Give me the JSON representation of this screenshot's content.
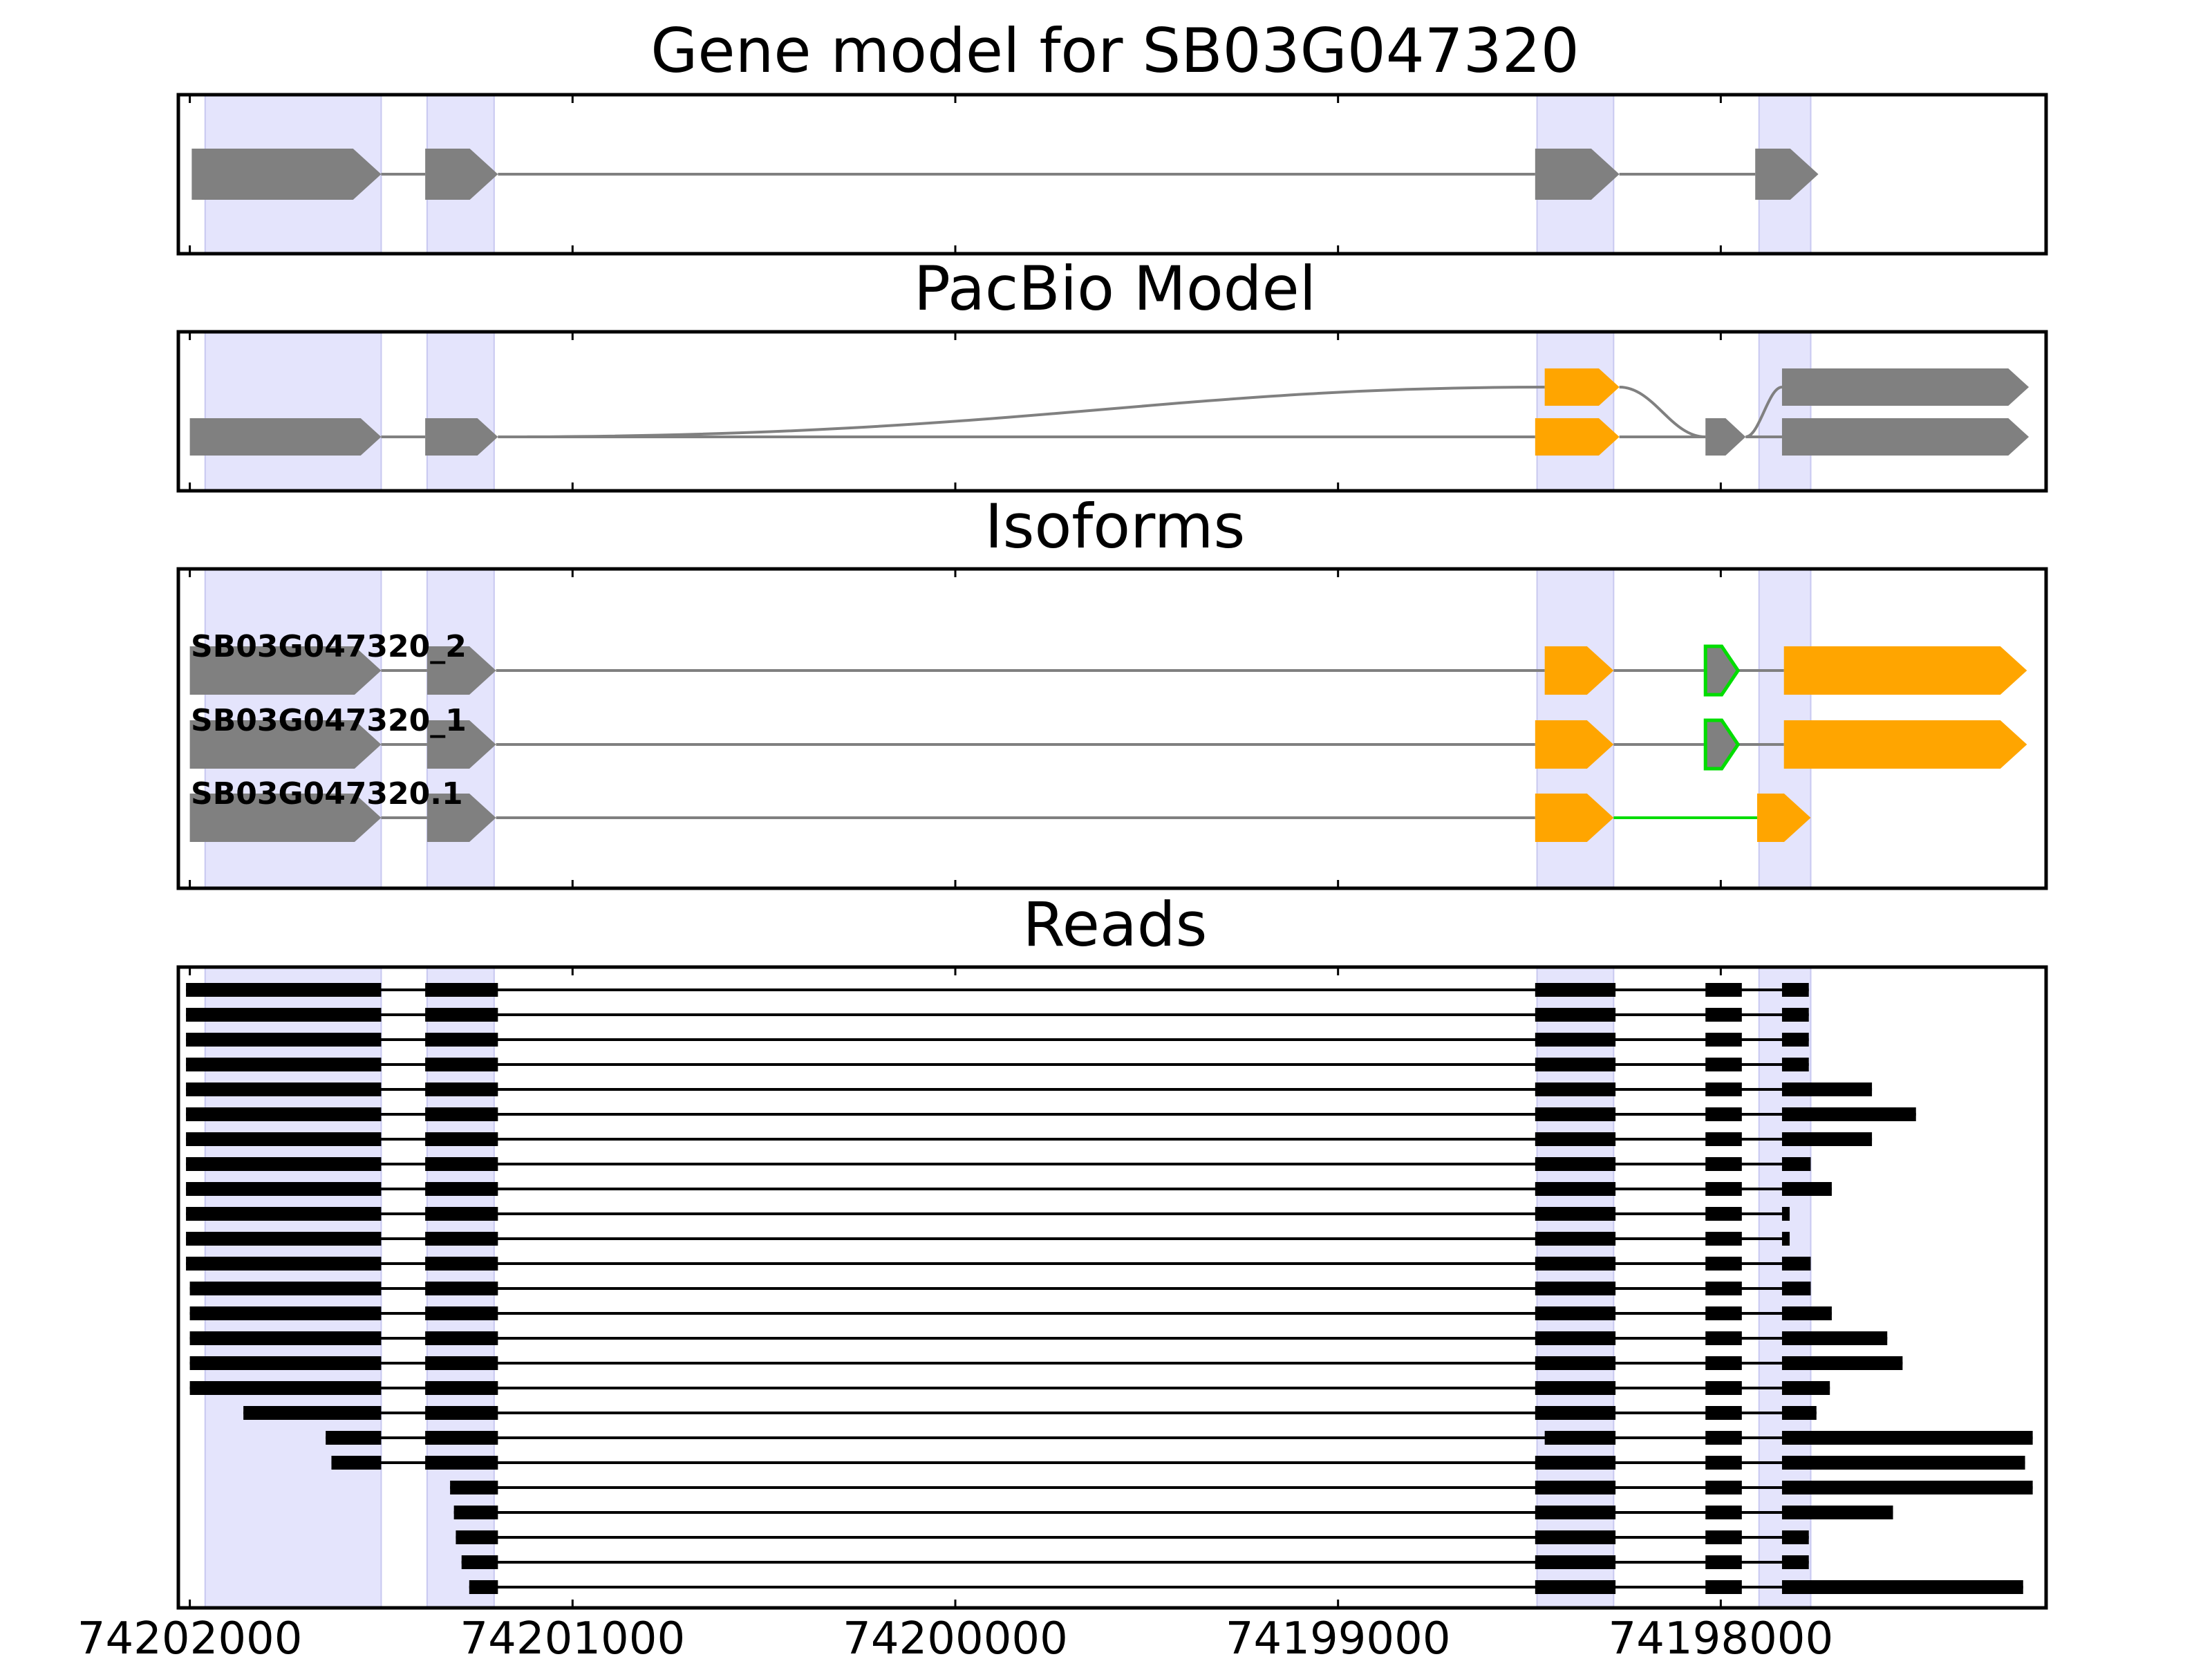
{
  "panels": {
    "gene_model_title": "Gene model for SB03G047320",
    "pacbio_title": "PacBio Model",
    "isoforms_title": "Isoforms",
    "reads_title": "Reads"
  },
  "colors": {
    "exon_gray": "#808080",
    "exon_orange": "#ffa500",
    "intron": "#808080",
    "highlight_green": "#00dd00",
    "exon_band": "#e4e4fc",
    "read": "#000000"
  },
  "chart_data": {
    "type": "gene-structure",
    "x_axis": {
      "range": [
        74202030,
        74197150
      ],
      "reversed": true,
      "ticks": [
        74202000,
        74201000,
        74200000,
        74199000,
        74198000
      ],
      "tick_labels": [
        "74202000",
        "74201000",
        "74200000",
        "74199000",
        "74198000"
      ]
    },
    "exon_bands": [
      [
        74201960,
        74201500
      ],
      [
        74201380,
        74201205
      ],
      [
        74198480,
        74198280
      ],
      [
        74197900,
        74197765
      ]
    ],
    "gene_model": {
      "exons": [
        {
          "s": 74201995,
          "e": 74201500,
          "color": "gray"
        },
        {
          "s": 74201385,
          "e": 74201195,
          "color": "gray"
        },
        {
          "s": 74198485,
          "e": 74198265,
          "color": "gray"
        },
        {
          "s": 74197910,
          "e": 74197745,
          "color": "gray"
        }
      ]
    },
    "pacbio_model": {
      "paths": [
        {
          "exons": [
            {
              "s": 74202000,
              "e": 74201500,
              "color": "gray"
            },
            {
              "s": 74201385,
              "e": 74201195,
              "color": "gray"
            },
            {
              "s": 74198485,
              "e": 74198265,
              "color": "orange"
            },
            {
              "s": 74198040,
              "e": 74197935,
              "color": "gray"
            },
            {
              "s": 74197840,
              "e": 74197195,
              "color": "gray"
            }
          ]
        },
        {
          "exons": [
            {
              "s": 74201385,
              "e": 74201195,
              "color": "gray"
            },
            {
              "s": 74198460,
              "e": 74198265,
              "color": "orange"
            },
            {
              "s": 74198040,
              "e": 74197935,
              "color": "gray"
            },
            {
              "s": 74197840,
              "e": 74197195,
              "color": "gray"
            }
          ]
        }
      ]
    },
    "isoforms": [
      {
        "name": "SB03G047320_2",
        "exons": [
          {
            "s": 74202000,
            "e": 74201500,
            "color": "gray"
          },
          {
            "s": 74201380,
            "e": 74201200,
            "color": "gray"
          },
          {
            "s": 74198460,
            "e": 74198280,
            "color": "orange"
          },
          {
            "s": 74198040,
            "e": 74197955,
            "color": "gray",
            "green_outline": true
          },
          {
            "s": 74197835,
            "e": 74197200,
            "color": "orange"
          }
        ]
      },
      {
        "name": "SB03G047320_1",
        "exons": [
          {
            "s": 74202000,
            "e": 74201500,
            "color": "gray"
          },
          {
            "s": 74201380,
            "e": 74201200,
            "color": "gray"
          },
          {
            "s": 74198485,
            "e": 74198280,
            "color": "orange"
          },
          {
            "s": 74198040,
            "e": 74197955,
            "color": "gray",
            "green_outline": true
          },
          {
            "s": 74197835,
            "e": 74197200,
            "color": "orange"
          }
        ]
      },
      {
        "name": "SB03G047320.1",
        "green_intron": 2,
        "exons": [
          {
            "s": 74202000,
            "e": 74201500,
            "color": "gray"
          },
          {
            "s": 74201380,
            "e": 74201200,
            "color": "gray"
          },
          {
            "s": 74198485,
            "e": 74198280,
            "color": "orange"
          },
          {
            "s": 74197905,
            "e": 74197765,
            "color": "gray_orange"
          }
        ]
      }
    ],
    "reads": {
      "ends": [
        [
          74202010,
          74197770
        ],
        [
          74202010,
          74197770
        ],
        [
          74202010,
          74197770
        ],
        [
          74202010,
          74197770
        ],
        [
          74202010,
          74197605
        ],
        [
          74202010,
          74197490
        ],
        [
          74202010,
          74197605
        ],
        [
          74202010,
          74197765
        ],
        [
          74202010,
          74197710
        ],
        [
          74202010,
          74197820
        ],
        [
          74202010,
          74197820
        ],
        [
          74202010,
          74197765
        ],
        [
          74202000,
          74197765
        ],
        [
          74202000,
          74197710
        ],
        [
          74202000,
          74197565
        ],
        [
          74202000,
          74197525
        ],
        [
          74202000,
          74197715
        ],
        [
          74201860,
          74197750
        ],
        [
          74201645,
          74197185
        ],
        [
          74201630,
          74197205
        ],
        [
          74201320,
          74197185
        ],
        [
          74201310,
          74197550
        ],
        [
          74201305,
          74197770
        ],
        [
          74201290,
          74197770
        ],
        [
          74201270,
          74197210
        ]
      ],
      "exon_template": [
        [
          74201500,
          74201500
        ],
        [
          74201385,
          74201195
        ],
        [
          74198485,
          74198275
        ],
        [
          74198040,
          74197945
        ],
        [
          74197840,
          0
        ]
      ],
      "special": {
        "18": {
          "exon3_start": 74198460
        }
      }
    }
  }
}
